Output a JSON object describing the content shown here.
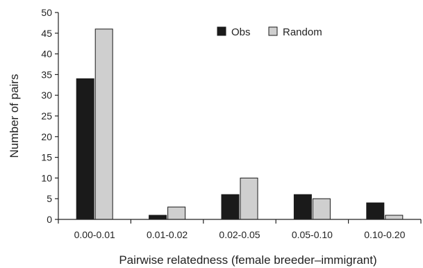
{
  "chart_data": {
    "type": "bar",
    "title": "",
    "xlabel": "Pairwise relatedness (female breeder–immigrant)",
    "ylabel": "Number of pairs",
    "ylim": [
      0,
      50
    ],
    "yticks": [
      0,
      5,
      10,
      15,
      20,
      25,
      30,
      35,
      40,
      45,
      50
    ],
    "categories": [
      "0.00-0.01",
      "0.01-0.02",
      "0.02-0.05",
      "0.05-0.10",
      "0.10-0.20"
    ],
    "series": [
      {
        "name": "Obs",
        "color": "#1a1a1a",
        "values": [
          34,
          1,
          6,
          6,
          4
        ]
      },
      {
        "name": "Random",
        "color": "#cfcfcf",
        "values": [
          46,
          3,
          10,
          5,
          1
        ]
      }
    ],
    "grid": false,
    "legend_position": "top-right"
  }
}
